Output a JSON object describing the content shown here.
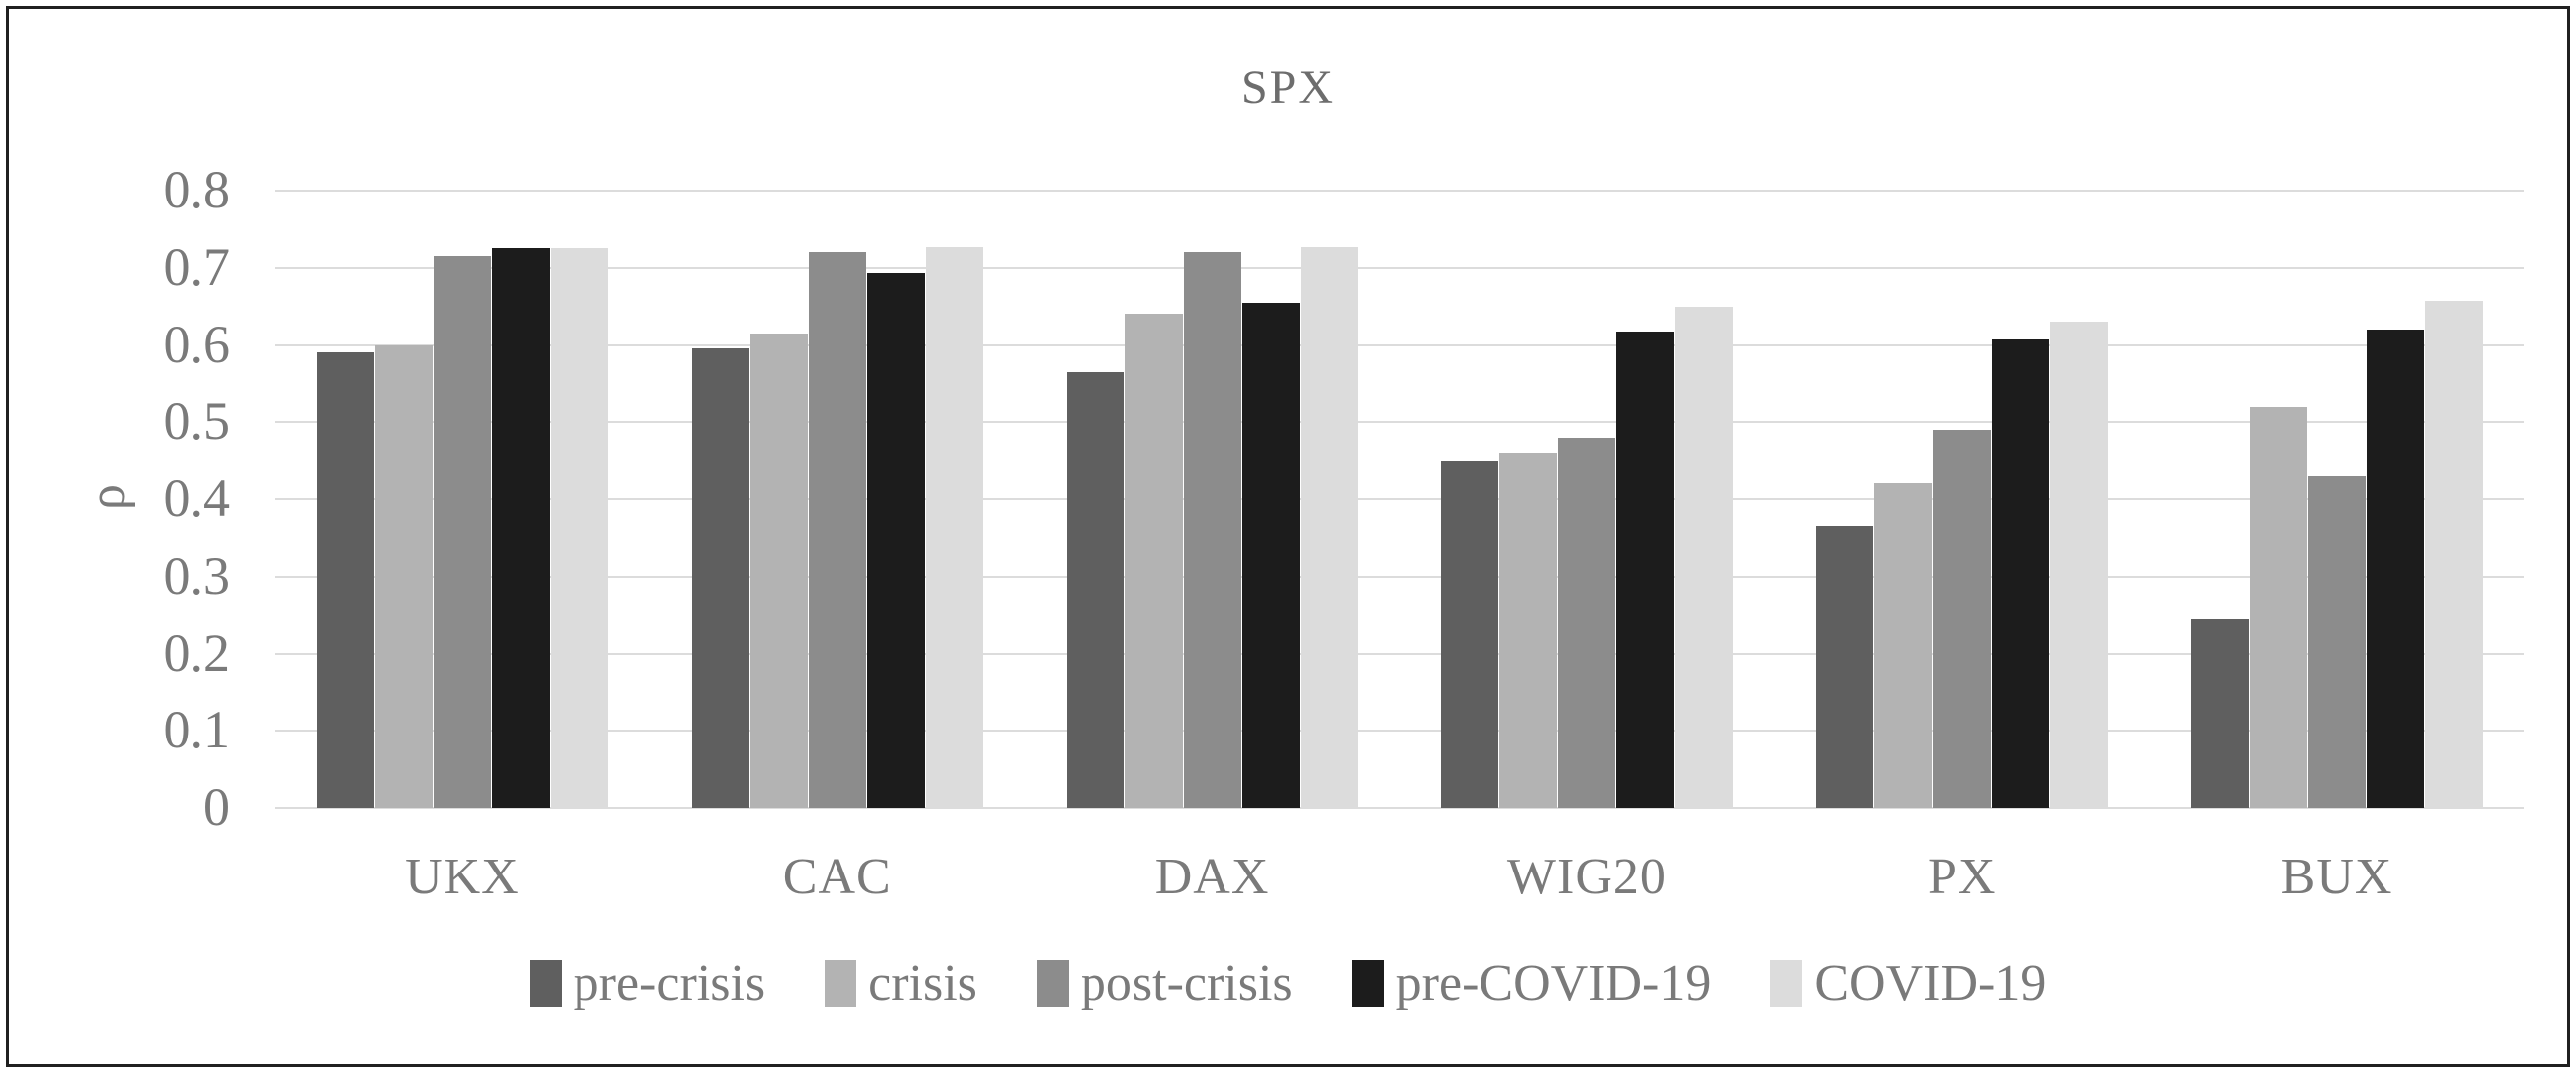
{
  "frame": {
    "border_color": "#202020",
    "background": "#ffffff"
  },
  "text_colors": {
    "title": "#6d6d6d",
    "axis": "#7a7a7a",
    "gridline": "#dcdcdc"
  },
  "chart_data": {
    "type": "bar",
    "title": "SPX",
    "xlabel": "",
    "ylabel": "ρ",
    "ylim": [
      0,
      0.8
    ],
    "ytick_step": 0.1,
    "ytick_labels": [
      "0",
      "0.1",
      "0.2",
      "0.3",
      "0.4",
      "0.5",
      "0.6",
      "0.7",
      "0.8"
    ],
    "grid": true,
    "legend_position": "bottom",
    "categories": [
      "UKX",
      "CAC",
      "DAX",
      "WIG20",
      "PX",
      "BUX"
    ],
    "series": [
      {
        "name": "pre-crisis",
        "color": "#5f5f5f",
        "values": [
          0.59,
          0.595,
          0.565,
          0.45,
          0.365,
          0.245
        ]
      },
      {
        "name": "crisis",
        "color": "#b3b3b3",
        "values": [
          0.6,
          0.615,
          0.64,
          0.46,
          0.42,
          0.52
        ]
      },
      {
        "name": "post-crisis",
        "color": "#8c8c8c",
        "values": [
          0.715,
          0.72,
          0.72,
          0.48,
          0.49,
          0.43
        ]
      },
      {
        "name": "pre-COVID-19",
        "color": "#1c1c1c",
        "values": [
          0.725,
          0.693,
          0.655,
          0.618,
          0.607,
          0.62
        ]
      },
      {
        "name": "COVID-19",
        "color": "#dcdcdc",
        "values": [
          0.725,
          0.727,
          0.727,
          0.65,
          0.63,
          0.657
        ]
      }
    ]
  }
}
